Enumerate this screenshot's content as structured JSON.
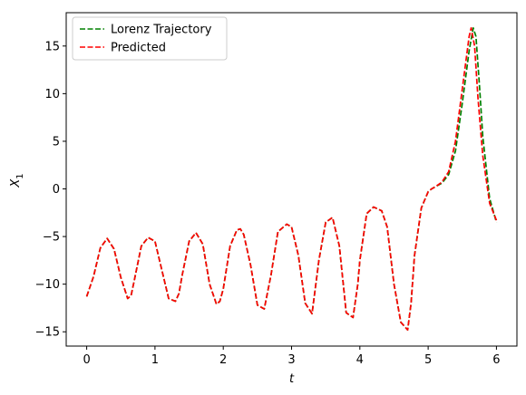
{
  "chart_data": {
    "type": "line",
    "xlabel": "t",
    "ylabel": "X",
    "ylabel_subscript": "1",
    "xlim": [
      -0.3,
      6.3
    ],
    "ylim": [
      -16.5,
      18.5
    ],
    "xticks": [
      0,
      1,
      2,
      3,
      4,
      5,
      6
    ],
    "yticks": [
      -15,
      -10,
      -5,
      0,
      5,
      10,
      15
    ],
    "ytick_labels": [
      "−15",
      "−10",
      "−5",
      "0",
      "5",
      "10",
      "15"
    ],
    "grid": false,
    "legend_position": "top-left",
    "series": [
      {
        "name": "Lorenz Trajectory",
        "color": "#008000",
        "dash": "dashed",
        "x": [
          0.0,
          0.1,
          0.2,
          0.3,
          0.4,
          0.5,
          0.6,
          0.65,
          0.7,
          0.8,
          0.9,
          1.0,
          1.1,
          1.2,
          1.3,
          1.35,
          1.4,
          1.5,
          1.6,
          1.7,
          1.8,
          1.9,
          1.95,
          2.0,
          2.1,
          2.2,
          2.25,
          2.3,
          2.4,
          2.5,
          2.6,
          2.7,
          2.8,
          2.93,
          3.0,
          3.1,
          3.2,
          3.3,
          3.4,
          3.5,
          3.6,
          3.7,
          3.8,
          3.9,
          3.97,
          4.0,
          4.1,
          4.2,
          4.32,
          4.4,
          4.5,
          4.6,
          4.7,
          4.75,
          4.8,
          4.9,
          5.0,
          5.05,
          5.1,
          5.2,
          5.3,
          5.4,
          5.5,
          5.6,
          5.66,
          5.7,
          5.75,
          5.8,
          5.9,
          6.0
        ],
        "y": [
          -11.3,
          -9.2,
          -6.2,
          -5.2,
          -6.3,
          -9.3,
          -11.5,
          -11.2,
          -9.5,
          -6.0,
          -5.1,
          -5.5,
          -8.5,
          -11.5,
          -11.8,
          -11.0,
          -9.0,
          -5.5,
          -4.6,
          -5.8,
          -10.0,
          -12.1,
          -11.8,
          -10.5,
          -6.0,
          -4.3,
          -4.2,
          -4.8,
          -8.0,
          -12.2,
          -12.6,
          -9.0,
          -4.5,
          -3.7,
          -4.0,
          -7.0,
          -12.0,
          -13.1,
          -7.5,
          -3.5,
          -3.0,
          -6.0,
          -13.0,
          -13.5,
          -10.0,
          -7.5,
          -2.6,
          -1.9,
          -2.3,
          -4.0,
          -10.0,
          -14.0,
          -14.8,
          -12.0,
          -7.0,
          -2.0,
          -0.3,
          0.0,
          0.2,
          0.6,
          1.5,
          4.0,
          9.0,
          14.5,
          16.9,
          16.0,
          11.0,
          5.5,
          -1.0,
          -3.5
        ]
      },
      {
        "name": "Predicted",
        "color": "#ff0000",
        "dash": "dashed",
        "x": [
          0.0,
          0.1,
          0.2,
          0.3,
          0.4,
          0.5,
          0.6,
          0.65,
          0.7,
          0.8,
          0.9,
          1.0,
          1.1,
          1.2,
          1.3,
          1.35,
          1.4,
          1.5,
          1.6,
          1.7,
          1.8,
          1.9,
          1.95,
          2.0,
          2.1,
          2.2,
          2.25,
          2.3,
          2.4,
          2.5,
          2.6,
          2.7,
          2.8,
          2.93,
          3.0,
          3.1,
          3.2,
          3.3,
          3.4,
          3.5,
          3.6,
          3.7,
          3.8,
          3.9,
          3.97,
          4.0,
          4.1,
          4.2,
          4.32,
          4.4,
          4.5,
          4.6,
          4.7,
          4.75,
          4.8,
          4.9,
          5.0,
          5.05,
          5.1,
          5.2,
          5.3,
          5.4,
          5.5,
          5.6,
          5.63,
          5.68,
          5.73,
          5.8,
          5.9,
          6.0
        ],
        "y": [
          -11.3,
          -9.2,
          -6.2,
          -5.2,
          -6.3,
          -9.3,
          -11.5,
          -11.2,
          -9.5,
          -6.0,
          -5.1,
          -5.5,
          -8.5,
          -11.5,
          -11.8,
          -11.0,
          -9.0,
          -5.5,
          -4.6,
          -5.8,
          -10.0,
          -12.1,
          -11.8,
          -10.5,
          -6.0,
          -4.3,
          -4.2,
          -4.8,
          -8.0,
          -12.2,
          -12.6,
          -9.0,
          -4.5,
          -3.7,
          -4.0,
          -7.0,
          -12.0,
          -13.1,
          -7.5,
          -3.5,
          -3.0,
          -6.0,
          -13.0,
          -13.5,
          -10.0,
          -7.5,
          -2.6,
          -1.9,
          -2.3,
          -4.0,
          -10.0,
          -14.0,
          -14.8,
          -12.0,
          -7.0,
          -2.0,
          -0.3,
          0.0,
          0.2,
          0.7,
          1.8,
          5.0,
          10.5,
          16.0,
          16.9,
          15.0,
          9.5,
          3.5,
          -1.5,
          -3.3
        ]
      }
    ]
  }
}
